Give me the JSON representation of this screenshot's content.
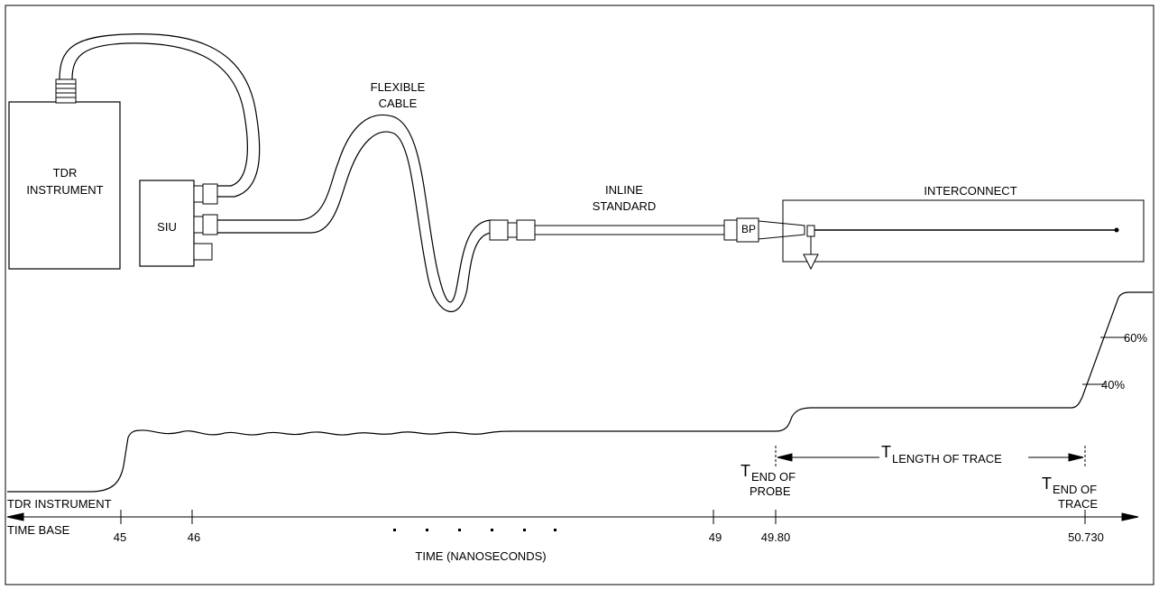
{
  "diagram": {
    "instrument_label_line1": "TDR",
    "instrument_label_line2": "INSTRUMENT",
    "siu_label": "SIU",
    "flexible_cable_line1": "FLEXIBLE",
    "flexible_cable_line2": "CABLE",
    "inline_standard_line1": "INLINE",
    "inline_standard_line2": "STANDARD",
    "interconnect_label": "INTERCONNECT",
    "probe_tip_text": "BP",
    "percent_60": "60%",
    "percent_40": "40%",
    "t_end_probe_T": "T",
    "t_end_probe_sub": "END OF",
    "t_end_probe_line2": "PROBE",
    "t_length_T": "T",
    "t_length_sub": "LENGTH OF TRACE",
    "t_end_trace_T": "T",
    "t_end_trace_sub": "END OF",
    "t_end_trace_line2": "TRACE",
    "time_base_line1": "TDR INSTRUMENT",
    "time_base_line2": "TIME BASE",
    "time_axis_label": "TIME (NANOSECONDS)",
    "ticks": [
      "45",
      "46",
      "49",
      "49.80",
      "50.730"
    ]
  }
}
